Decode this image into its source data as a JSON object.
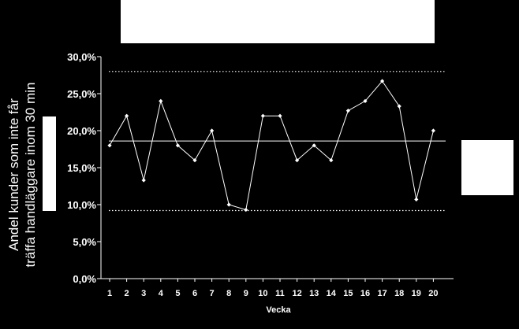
{
  "chart_data": {
    "type": "line",
    "title": "",
    "xlabel": "Vecka",
    "ylabel_lines": [
      "Andel kunder som inte får",
      "träffa handläggare inom 30 min"
    ],
    "categories": [
      "1",
      "2",
      "3",
      "4",
      "5",
      "6",
      "7",
      "8",
      "9",
      "10",
      "11",
      "12",
      "13",
      "14",
      "15",
      "16",
      "17",
      "18",
      "19",
      "20"
    ],
    "series": [
      {
        "values": [
          18.0,
          22.0,
          13.3,
          24.0,
          18.0,
          16.0,
          20.0,
          10.0,
          9.3,
          22.0,
          22.0,
          16.0,
          18.0,
          16.0,
          22.7,
          24.0,
          26.7,
          23.3,
          10.7,
          20.0
        ]
      }
    ],
    "reference_lines": {
      "center": 18.6,
      "upper_control": 28.0,
      "lower_control": 9.2
    },
    "ylim": [
      0,
      30
    ],
    "yticks": [
      "0,0%",
      "5,0%",
      "10,0%",
      "15,0%",
      "20,0%",
      "25,0%",
      "30,0%"
    ],
    "grid": false,
    "legend": "none",
    "colors": {
      "background": "#000000",
      "line": "#ffffff",
      "redaction": "#ffffff"
    }
  }
}
